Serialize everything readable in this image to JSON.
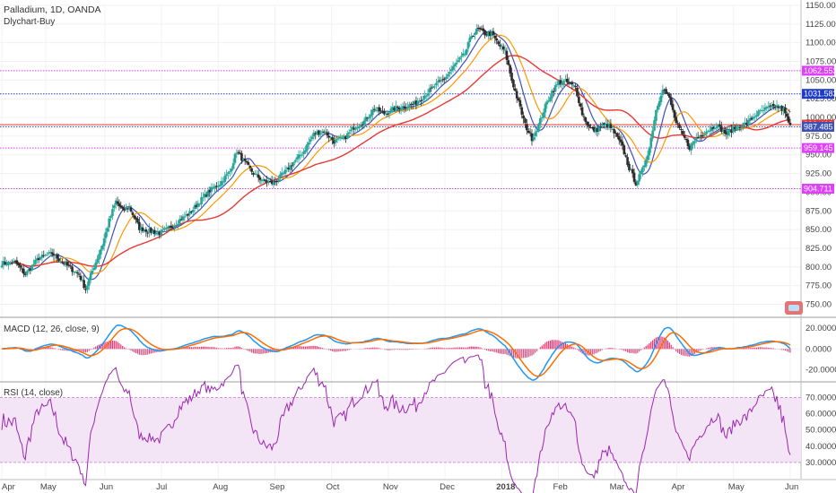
{
  "header": {
    "title": "Palladium, 1D, OANDA",
    "indicator": "Dlychart-Buy"
  },
  "colors": {
    "up": "#26a69a",
    "down": "#2b2b2b",
    "ma_fast": "#3f51b5",
    "ma_mid": "#ff9800",
    "ma_slow": "#e53935",
    "level_magenta": "#e040fb",
    "level_blue": "#1e3cc8",
    "macd_line": "#2196f3",
    "signal_line": "#ff6d00",
    "hist_pos": "#e91e63",
    "rsi_line": "#9c27b0",
    "rsi_band": "#f3e5f5"
  },
  "chart_data": [
    {
      "type": "candlestick",
      "name": "price",
      "title": "Palladium, 1D, OANDA",
      "ylim": [
        735,
        1150
      ],
      "x_labels": [
        "Apr",
        "May",
        "Jun",
        "Jul",
        "Aug",
        "Sep",
        "Oct",
        "Nov",
        "Dec",
        "2018",
        "Feb",
        "Mar",
        "Apr",
        "May",
        "Jun"
      ],
      "y_ticks": [
        750,
        775,
        800,
        825,
        850,
        875,
        900,
        925,
        950,
        975,
        1000,
        1025,
        1050,
        1075,
        1100,
        1125,
        1150
      ],
      "anchors": [
        [
          0,
          805
        ],
        [
          8,
          806
        ],
        [
          14,
          790
        ],
        [
          22,
          812
        ],
        [
          30,
          818
        ],
        [
          38,
          803
        ],
        [
          46,
          790
        ],
        [
          50,
          770
        ],
        [
          54,
          795
        ],
        [
          60,
          830
        ],
        [
          64,
          862
        ],
        [
          68,
          888
        ],
        [
          72,
          875
        ],
        [
          76,
          880
        ],
        [
          82,
          852
        ],
        [
          88,
          848
        ],
        [
          94,
          845
        ],
        [
          100,
          852
        ],
        [
          106,
          863
        ],
        [
          112,
          872
        ],
        [
          118,
          888
        ],
        [
          124,
          902
        ],
        [
          130,
          912
        ],
        [
          136,
          928
        ],
        [
          140,
          955
        ],
        [
          144,
          942
        ],
        [
          150,
          925
        ],
        [
          156,
          915
        ],
        [
          162,
          912
        ],
        [
          168,
          925
        ],
        [
          174,
          940
        ],
        [
          180,
          955
        ],
        [
          186,
          978
        ],
        [
          192,
          982
        ],
        [
          198,
          968
        ],
        [
          204,
          972
        ],
        [
          210,
          987
        ],
        [
          216,
          995
        ],
        [
          222,
          1012
        ],
        [
          228,
          1005
        ],
        [
          234,
          1012
        ],
        [
          240,
          1015
        ],
        [
          246,
          1018
        ],
        [
          252,
          1030
        ],
        [
          258,
          1042
        ],
        [
          264,
          1052
        ],
        [
          270,
          1070
        ],
        [
          276,
          1085
        ],
        [
          280,
          1110
        ],
        [
          284,
          1118
        ],
        [
          288,
          1112
        ],
        [
          292,
          1112
        ],
        [
          296,
          1098
        ],
        [
          300,
          1088
        ],
        [
          304,
          1050
        ],
        [
          308,
          1020
        ],
        [
          312,
          990
        ],
        [
          316,
          972
        ],
        [
          320,
          990
        ],
        [
          324,
          1015
        ],
        [
          328,
          1035
        ],
        [
          332,
          1047
        ],
        [
          336,
          1048
        ],
        [
          342,
          1040
        ],
        [
          346,
          1005
        ],
        [
          350,
          987
        ],
        [
          354,
          982
        ],
        [
          358,
          990
        ],
        [
          362,
          989
        ],
        [
          366,
          976
        ],
        [
          370,
          960
        ],
        [
          374,
          932
        ],
        [
          378,
          912
        ],
        [
          382,
          930
        ],
        [
          386,
          960
        ],
        [
          390,
          1010
        ],
        [
          394,
          1040
        ],
        [
          398,
          1025
        ],
        [
          402,
          992
        ],
        [
          406,
          976
        ],
        [
          410,
          960
        ],
        [
          414,
          972
        ],
        [
          420,
          982
        ],
        [
          426,
          990
        ],
        [
          432,
          978
        ],
        [
          438,
          988
        ],
        [
          444,
          992
        ],
        [
          450,
          1005
        ],
        [
          456,
          1012
        ],
        [
          462,
          1015
        ],
        [
          466,
          1010
        ],
        [
          470,
          988
        ]
      ],
      "moving_averages": [
        {
          "period": 10,
          "color": "#3f51b5"
        },
        {
          "period": 20,
          "color": "#ff9800"
        },
        {
          "period": 50,
          "color": "#e53935"
        }
      ],
      "levels": [
        {
          "value": 1062.553,
          "label": "1062.553",
          "color": "#e040fb",
          "style": "dotted"
        },
        {
          "value": 1031.583,
          "label": "1031.583",
          "color": "#1e3cc8",
          "style": "dotted"
        },
        {
          "value": 990.4,
          "label": "990.400",
          "color": "#e53935",
          "style": "solid"
        },
        {
          "value": 987.485,
          "label": "987.485",
          "color": "#3f51b5",
          "style": "dotted"
        },
        {
          "value": 959.145,
          "label": "959.145",
          "color": "#e040fb",
          "style": "dotted"
        },
        {
          "value": 904.711,
          "label": "904.711",
          "color": "#e040fb",
          "style": "dotted"
        }
      ]
    },
    {
      "type": "line",
      "name": "macd",
      "title": "MACD (12, 26, close, 9)",
      "ylim": [
        -30,
        28
      ],
      "y_ticks": [
        "20.0000",
        "0.0000",
        "-20.0000"
      ],
      "y_tick_values": [
        20,
        0,
        -20
      ],
      "series": [
        {
          "name": "",
          "key": "macd",
          "color": "#2196f3"
        },
        {
          "name": "",
          "key": "signal",
          "color": "#ff6d00"
        }
      ]
    },
    {
      "type": "line",
      "name": "rsi",
      "title": "RSI (14, close)",
      "ylim": [
        20,
        78
      ],
      "band": [
        30,
        70
      ],
      "y_ticks": [
        "70.0000",
        "60.0000",
        "50.0000",
        "40.0000",
        "30.0000"
      ],
      "y_tick_values": [
        70,
        60,
        50,
        40,
        30
      ]
    }
  ]
}
